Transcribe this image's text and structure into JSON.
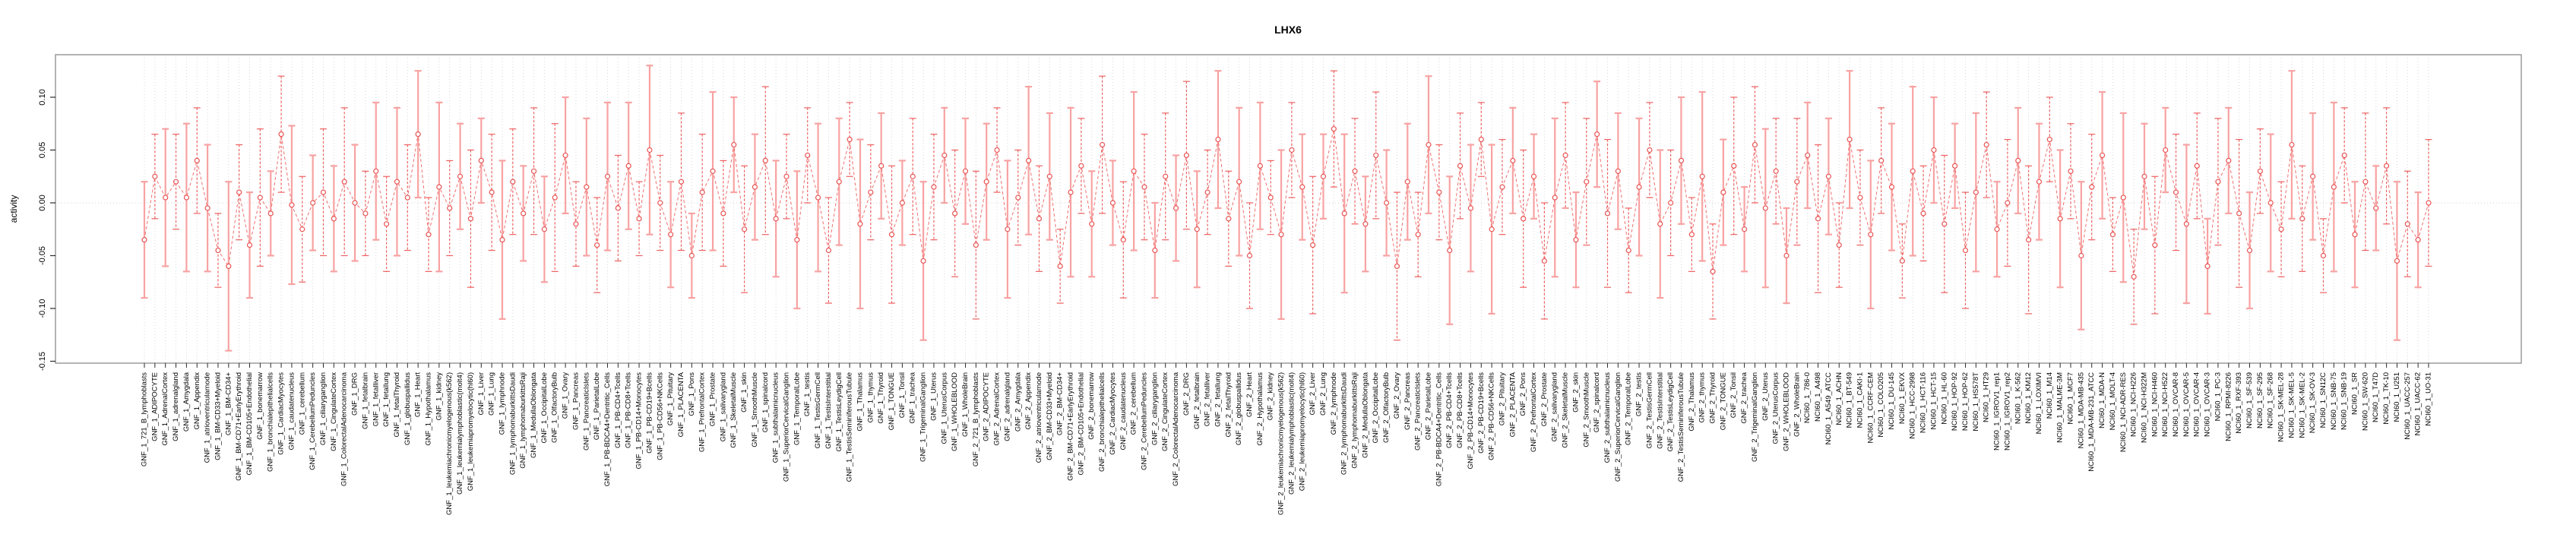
{
  "title": "LHX6",
  "chart_data": {
    "type": "line",
    "subtype": "points-with-error-bars",
    "title": "LHX6",
    "xlabel": "",
    "ylabel": "activity",
    "ylim": [
      -0.155,
      0.145
    ],
    "yticks": [
      0.1,
      0.05,
      0.0,
      -0.05,
      -0.1,
      -0.15
    ],
    "ytick_labels": [
      "0.10",
      "0.05",
      "0.00",
      "-0.05",
      "-0.10",
      "-0.15"
    ],
    "grid": "vertical dotted gridline per category; horizontal dotted line at 0",
    "legend_position": "none",
    "point_color": "#e85555",
    "line_color": "#ef7070",
    "errorbar_color_light": "#f8a2a2",
    "errorbar_color_dark": "#ee6161",
    "border_color": "#9a9a9a",
    "grid_color": "#d8d8d8",
    "categories": [
      "GNF_1_721_B_lymphoblasts",
      "GNF_1_ADIPOCYTE",
      "GNF_1_AdrenalCortex",
      "GNF_1_adrenalgland",
      "GNF_1_Amygdala",
      "GNF_1_Appendix",
      "GNF_1_atrioventricularnode",
      "GNF_1_BM-CD33+Myeloid",
      "GNF_1_BM-CD34+",
      "GNF_1_BM-CD71+EarlyErythroid",
      "GNF_1_BM-CD105+Endothelial",
      "GNF_1_bonemarrow",
      "GNF_1_bronchialepithelialcells",
      "GNF_1_CardiacMyocytes",
      "GNF_1_caudatenucleus",
      "GNF_1_cerebellum",
      "GNF_1_CerebellumPeduncles",
      "GNF_1_ciliaryganglion",
      "GNF_1_CingulateCortex",
      "GNF_1_ColorectalAdenocarcinoma",
      "GNF_1_DRG",
      "GNF_1_fetalbrain",
      "GNF_1_fetalliver",
      "GNF_1_fetallung",
      "GNF_1_fetalThyroid",
      "GNF_1_globuspallidus",
      "GNF_1_Heart",
      "GNF_1_Hypothalamus",
      "GNF_1_kidney",
      "GNF_1_leukemiachronicmyelogenous(k562)",
      "GNF_1_leukemialymphoblastic(molt4)",
      "GNF_1_leukemiapromyelocytic(hl60)",
      "GNF_1_Liver",
      "GNF_1_Lung",
      "GNF_1_lymphnode",
      "GNF_1_lymphomaburkittsDaudi",
      "GNF_1_lymphomaburkittsRaji",
      "GNF_1_MedullaOblongata",
      "GNF_1_OccipitalLobe",
      "GNF_1_OlfactoryBulb",
      "GNF_1_Ovary",
      "GNF_1_Pancreas",
      "GNF_1_PancreaticIslets",
      "GNF_1_ParietalLobe",
      "GNF_1_PB-BDCA4+Dentritic_Cells",
      "GNF_1_PB-CD4+Tcells",
      "GNF_1_PB-CD8+Tcells",
      "GNF_1_PB-CD14+Monocytes",
      "GNF_1_PB-CD19+Bcells",
      "GNF_1_PB-CD56+NKCells",
      "GNF_1_Pituitary",
      "GNF_1_PLACENTA",
      "GNF_1_Pons",
      "GNF_1_PrefrontalCortex",
      "GNF_1_Prostate",
      "GNF_1_salivarygland",
      "GNF_1_SkeletalMuscle",
      "GNF_1_skin",
      "GNF_1_SmoothMuscle",
      "GNF_1_spinalcord",
      "GNF_1_subthalamicnucleus",
      "GNF_1_SuperiorCervicalGanglion",
      "GNF_1_TemporalLobe",
      "GNF_1_testis",
      "GNF_1_TestisGermCell",
      "GNF_1_TestisInterstitial",
      "GNF_1_TestisLeydigCell",
      "GNF_1_TestisSeminiferousTubule",
      "GNF_1_Thalamus",
      "GNF_1_thymus",
      "GNF_1_Thyroid",
      "GNF_1_TONGUE",
      "GNF_1_Tonsil",
      "GNF_1_trachea",
      "GNF_1_TrigeminalGanglion",
      "GNF_1_Uterus",
      "GNF_1_UterusCorpus",
      "GNF_1_WHOLEBLOOD",
      "GNF_1_WholeBrain",
      "GNF_2_721_B_lymphoblasts",
      "GNF_2_ADIPOCYTE",
      "GNF_2_AdrenalCortex",
      "GNF_2_adrenalgland",
      "GNF_2_Amygdala",
      "GNF_2_Appendix",
      "GNF_2_atrioventricularnode",
      "GNF_2_BM-CD33+Myeloid",
      "GNF_2_BM-CD34+",
      "GNF_2_BM-CD71+EarlyErythroid",
      "GNF_2_BM-CD105+Endothelial",
      "GNF_2_bonemarrow",
      "GNF_2_bronchialepithelialcells",
      "GNF_2_CardiacMyocytes",
      "GNF_2_caudatenucleus",
      "GNF_2_cerebellum",
      "GNF_2_CerebellumPeduncles",
      "GNF_2_ciliaryganglion",
      "GNF_2_CingulateCortex",
      "GNF_2_ColorectalAdenocarcinoma",
      "GNF_2_DRG",
      "GNF_2_fetalbrain",
      "GNF_2_fetalliver",
      "GNF_2_fetallung",
      "GNF_2_fetalThyroid",
      "GNF_2_globuspallidus",
      "GNF_2_Heart",
      "GNF_2_Hypothalamus",
      "GNF_2_kidney",
      "GNF_2_leukemiachronicmyelogenous(k562)",
      "GNF_2_leukemialymphoblastic(molt4)",
      "GNF_2_leukemiapromyelocytic(hl60)",
      "GNF_2_Liver",
      "GNF_2_Lung",
      "GNF_2_lymphnode",
      "GNF_2_lymphomaburkittsDaudi",
      "GNF_2_lymphomaburkittsRaji",
      "GNF_2_MedullaOblongata",
      "GNF_2_OccipitalLobe",
      "GNF_2_OlfactoryBulb",
      "GNF_2_Ovary",
      "GNF_2_Pancreas",
      "GNF_2_PancreaticIslets",
      "GNF_2_ParietalLobe",
      "GNF_2_PB-BDCA4+Dentritic_Cells",
      "GNF_2_PB-CD4+Tcells",
      "GNF_2_PB-CD8+Tcells",
      "GNF_2_PB-CD14+Monocytes",
      "GNF_2_PB-CD19+Bcells",
      "GNF_2_PB-CD56+NKCells",
      "GNF_2_Pituitary",
      "GNF_2_PLACENTA",
      "GNF_2_Pons",
      "GNF_2_PrefrontalCortex",
      "GNF_2_Prostate",
      "GNF_2_salivarygland",
      "GNF_2_SkeletalMuscle",
      "GNF_2_skin",
      "GNF_2_SmoothMuscle",
      "GNF_2_spinalcord",
      "GNF_2_subthalamicnucleus",
      "GNF_2_SuperiorCervicalGanglion",
      "GNF_2_TemporalLobe",
      "GNF_2_testis",
      "GNF_2_TestisGermCell",
      "GNF_2_TestisInterstitial",
      "GNF_2_TestisLeydigCell",
      "GNF_2_TestisSeminiferousTubule",
      "GNF_2_Thalamus",
      "GNF_2_thymus",
      "GNF_2_Thyroid",
      "GNF_2_TONGUE",
      "GNF_2_Tonsil",
      "GNF_2_trachea",
      "GNF_2_TrigeminalGanglion",
      "GNF_2_Uterus",
      "GNF_2_UterusCorpus",
      "GNF_2_WHOLEBLOOD",
      "GNF_2_WholeBrain",
      "NCI60_1_786-0",
      "NCI60_1_A498",
      "NCI60_1_A549_ATCC",
      "NCI60_1_ACHN",
      "NCI60_1_BT-549",
      "NCI60_1_CAKI-1",
      "NCI60_1_CCRF-CEM",
      "NCI60_1_COLO205",
      "NCI60_1_DU-145",
      "NCI60_1_EKVX",
      "NCI60_1_HCC-2998",
      "NCI60_1_HCT-116",
      "NCI60_1_HCT-15",
      "NCI60_1_HL-60",
      "NCI60_1_HOP-92",
      "NCI60_1_HOP-62",
      "NCI60_1_HS578T",
      "NCI60_1_HT29",
      "NCI60_1_IGROV1_rep1",
      "NCI60_1_IGROV1_rep2",
      "NCI60_1_K-562",
      "NCI60_1_KM12",
      "NCI60_1_LOXIMVI",
      "NCI60_1_M14",
      "NCI60_1_MALME-3M",
      "NCI60_1_MCF7",
      "NCI60_1_MDA-MB-435",
      "NCI60_1_MDA-MB-231_ATCC",
      "NCI60_1_MDA-N",
      "NCI60_1_MOLT-4",
      "NCI60_1_NCI-ADR-RES",
      "NCI60_1_NCI-H226",
      "NCI60_1_NCI-H322M",
      "NCI60_1_NCI-H460",
      "NCI60_1_NCI-H522",
      "NCI60_1_OVCAR-8",
      "NCI60_1_OVCAR-5",
      "NCI60_1_OVCAR-4",
      "NCI60_1_OVCAR-3",
      "NCI60_1_PC-3",
      "NCI60_1_RPMI-8226",
      "NCI60_1_RXF-393",
      "NCI60_1_SF-539",
      "NCI60_1_SF-295",
      "NCI60_1_SF-268",
      "NCI60_1_SK-MEL-28",
      "NCI60_1_SK-MEL-5",
      "NCI60_1_SK-MEL-2",
      "NCI60_1_SK-OV-3",
      "NCI60_1_SN12C",
      "NCI60_1_SNB-75",
      "NCI60_1_SNB-19",
      "NCI60_1_SR",
      "NCI60_1_SW-620",
      "NCI60_1_T47D",
      "NCI60_1_TK-10",
      "NCI60_1_U251",
      "NCI60_1_UACC-257",
      "NCI60_1_UACC-62",
      "NCI60_1_UO-31"
    ],
    "series": [
      {
        "name": "activity",
        "values": [
          -0.035,
          0.025,
          0.005,
          0.02,
          0.005,
          0.04,
          -0.005,
          -0.045,
          -0.06,
          0.01,
          -0.04,
          0.005,
          -0.01,
          0.065,
          -0.002,
          -0.025,
          0.0,
          0.01,
          -0.015,
          0.02,
          0.0,
          -0.01,
          0.03,
          -0.02,
          0.02,
          0.005,
          0.065,
          -0.03,
          0.015,
          -0.005,
          0.025,
          -0.015,
          0.04,
          0.01,
          -0.035,
          0.02,
          -0.01,
          0.03,
          -0.025,
          0.005,
          0.045,
          -0.02,
          0.015,
          -0.04,
          0.025,
          -0.005,
          0.035,
          -0.015,
          0.05,
          0.0,
          -0.03,
          0.02,
          -0.05,
          0.01,
          0.03,
          -0.01,
          0.055,
          -0.025,
          0.015,
          0.04,
          -0.015,
          0.025,
          -0.035,
          0.045,
          0.005,
          -0.045,
          0.02,
          0.06,
          -0.02,
          0.01,
          0.035,
          -0.03,
          0.0,
          0.025,
          -0.055,
          0.015,
          0.045,
          -0.01,
          0.03,
          -0.04,
          0.02,
          0.05,
          -0.025,
          0.005,
          0.04,
          -0.015,
          0.025,
          -0.06,
          0.01,
          0.035,
          -0.02,
          0.055,
          0.0,
          -0.035,
          0.03,
          0.015,
          -0.045,
          0.025,
          -0.005,
          0.045,
          -0.025,
          0.01,
          0.06,
          -0.015,
          0.02,
          -0.05,
          0.035,
          0.005,
          -0.03,
          0.05,
          0.015,
          -0.04,
          0.025,
          0.07,
          -0.01,
          0.03,
          -0.02,
          0.045,
          0.0,
          -0.06,
          0.02,
          -0.03,
          0.055,
          0.01,
          -0.045,
          0.035,
          -0.005,
          0.06,
          -0.025,
          0.015,
          0.04,
          -0.015,
          0.025,
          -0.055,
          0.005,
          0.045,
          -0.035,
          0.02,
          0.065,
          -0.01,
          0.03,
          -0.045,
          0.015,
          0.05,
          -0.02,
          0.0,
          0.04,
          -0.03,
          0.025,
          -0.065,
          0.01,
          0.035,
          -0.025,
          0.055,
          -0.005,
          0.03,
          -0.05,
          0.02,
          0.045,
          -0.015,
          0.025,
          -0.04,
          0.06,
          0.005,
          -0.03,
          0.04,
          0.015,
          -0.055,
          0.03,
          -0.01,
          0.05,
          -0.02,
          0.035,
          -0.045,
          0.01,
          0.055,
          -0.025,
          0.0,
          0.04,
          -0.035,
          0.02,
          0.06,
          -0.015,
          0.03,
          -0.05,
          0.015,
          0.045,
          -0.03,
          0.005,
          -0.07,
          0.025,
          -0.04,
          0.05,
          0.01,
          -0.02,
          0.035,
          -0.06,
          0.02,
          0.04,
          -0.01,
          -0.045,
          0.03,
          0.0,
          -0.025,
          0.055,
          -0.015,
          0.025,
          -0.05,
          0.015,
          0.045,
          -0.03,
          0.02,
          -0.005,
          0.035,
          -0.055,
          -0.02,
          -0.035,
          0.0
        ],
        "error_halfwidths": [
          0.055,
          0.04,
          0.065,
          0.045,
          0.07,
          0.05,
          0.06,
          0.035,
          0.08,
          0.045,
          0.05,
          0.065,
          0.04,
          0.055,
          0.075,
          0.05,
          0.045,
          0.06,
          0.05,
          0.07,
          0.055,
          0.04,
          0.065,
          0.045,
          0.07,
          0.05,
          0.06,
          0.035,
          0.08,
          0.045,
          0.05,
          0.065,
          0.04,
          0.055,
          0.075,
          0.05,
          0.045,
          0.06,
          0.05,
          0.07,
          0.055,
          0.04,
          0.065,
          0.045,
          0.07,
          0.05,
          0.06,
          0.035,
          0.08,
          0.045,
          0.05,
          0.065,
          0.04,
          0.055,
          0.075,
          0.05,
          0.045,
          0.06,
          0.05,
          0.07,
          0.055,
          0.04,
          0.065,
          0.045,
          0.07,
          0.05,
          0.06,
          0.035,
          0.08,
          0.045,
          0.05,
          0.065,
          0.04,
          0.055,
          0.075,
          0.05,
          0.045,
          0.06,
          0.05,
          0.07,
          0.055,
          0.04,
          0.065,
          0.045,
          0.07,
          0.05,
          0.06,
          0.035,
          0.08,
          0.045,
          0.05,
          0.065,
          0.04,
          0.055,
          0.075,
          0.05,
          0.045,
          0.06,
          0.05,
          0.07,
          0.055,
          0.04,
          0.065,
          0.045,
          0.07,
          0.05,
          0.06,
          0.035,
          0.08,
          0.045,
          0.05,
          0.065,
          0.04,
          0.055,
          0.075,
          0.05,
          0.045,
          0.06,
          0.05,
          0.07,
          0.055,
          0.04,
          0.065,
          0.045,
          0.07,
          0.05,
          0.06,
          0.035,
          0.08,
          0.045,
          0.05,
          0.065,
          0.04,
          0.055,
          0.075,
          0.05,
          0.045,
          0.06,
          0.05,
          0.07,
          0.055,
          0.04,
          0.065,
          0.045,
          0.07,
          0.05,
          0.06,
          0.035,
          0.08,
          0.045,
          0.05,
          0.065,
          0.04,
          0.055,
          0.075,
          0.05,
          0.045,
          0.06,
          0.05,
          0.07,
          0.055,
          0.04,
          0.065,
          0.045,
          0.07,
          0.05,
          0.06,
          0.035,
          0.08,
          0.045,
          0.05,
          0.065,
          0.04,
          0.055,
          0.075,
          0.05,
          0.045,
          0.06,
          0.05,
          0.07,
          0.055,
          0.04,
          0.065,
          0.045,
          0.07,
          0.05,
          0.06,
          0.035,
          0.08,
          0.045,
          0.05,
          0.065,
          0.04,
          0.055,
          0.075,
          0.05,
          0.045,
          0.06,
          0.05,
          0.07,
          0.055,
          0.04,
          0.065,
          0.045,
          0.07,
          0.05,
          0.06,
          0.035,
          0.08,
          0.045,
          0.05,
          0.065,
          0.04,
          0.055,
          0.075,
          0.05,
          0.045,
          0.06
        ]
      }
    ]
  }
}
